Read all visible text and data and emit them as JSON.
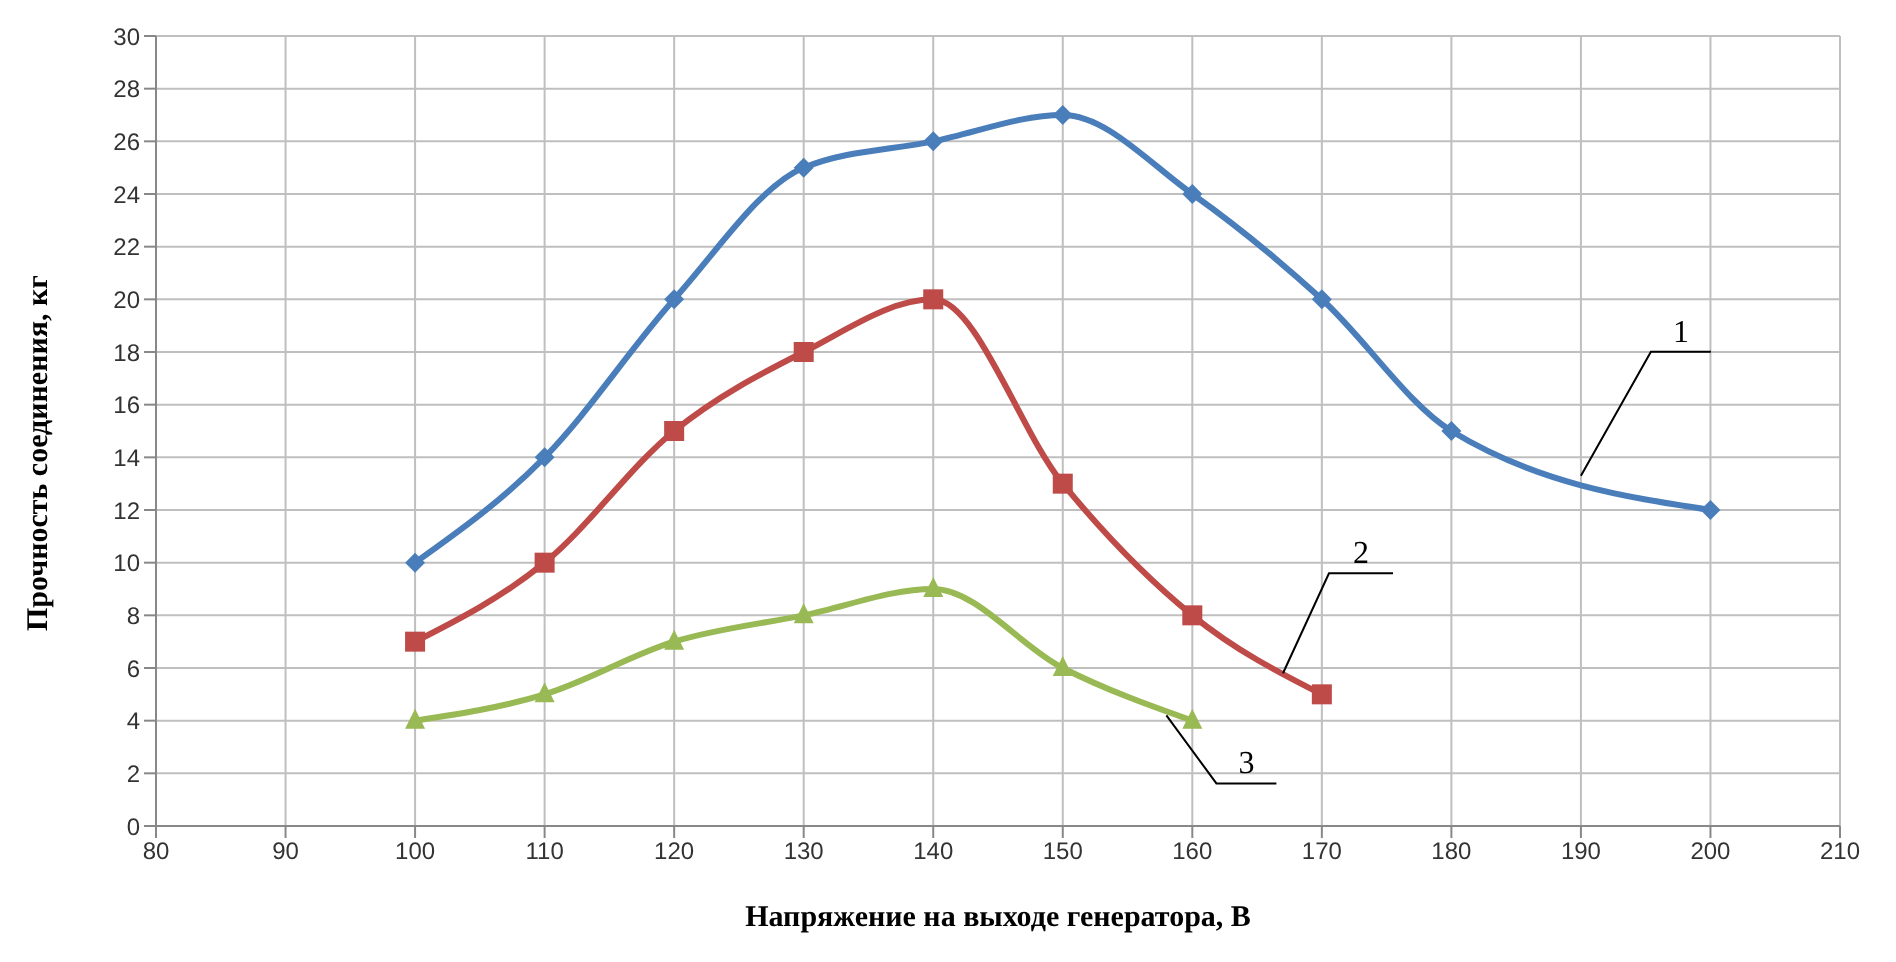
{
  "chart_data": {
    "type": "line",
    "xlabel": "Напряжение на выходе генератора, В",
    "ylabel": "Прочность соединения, кг",
    "x": [
      100,
      110,
      120,
      130,
      140,
      150,
      160,
      170,
      180,
      200
    ],
    "series": [
      {
        "color": "#4a7ebb",
        "marker": "diamond",
        "values": [
          10,
          14,
          20,
          25,
          26,
          27,
          24,
          20,
          15,
          12
        ]
      },
      {
        "color": "#be4b48",
        "marker": "square",
        "x": [
          100,
          110,
          120,
          130,
          140,
          150,
          160,
          170
        ],
        "values": [
          7,
          10,
          15,
          18,
          20,
          13,
          8,
          5
        ]
      },
      {
        "color": "#98b954",
        "marker": "triangle",
        "x": [
          100,
          110,
          120,
          130,
          140,
          150,
          160
        ],
        "values": [
          4,
          5,
          7,
          8,
          9,
          6,
          4
        ]
      }
    ],
    "xlim": [
      80,
      210
    ],
    "xticks": [
      80,
      90,
      100,
      110,
      120,
      130,
      140,
      150,
      160,
      170,
      180,
      190,
      200,
      210
    ],
    "ylim": [
      0,
      30
    ],
    "yticks": [
      0,
      2,
      4,
      6,
      8,
      10,
      12,
      14,
      16,
      18,
      20,
      22,
      24,
      26,
      28,
      30
    ],
    "grid": true,
    "legend": false,
    "line_style": "solid",
    "annotations": [
      {
        "text": "1",
        "x": 190,
        "y": 13.3
      },
      {
        "text": "2",
        "x": 167,
        "y": 5.8
      },
      {
        "text": "3",
        "x": 158,
        "y": 4.2
      }
    ]
  }
}
